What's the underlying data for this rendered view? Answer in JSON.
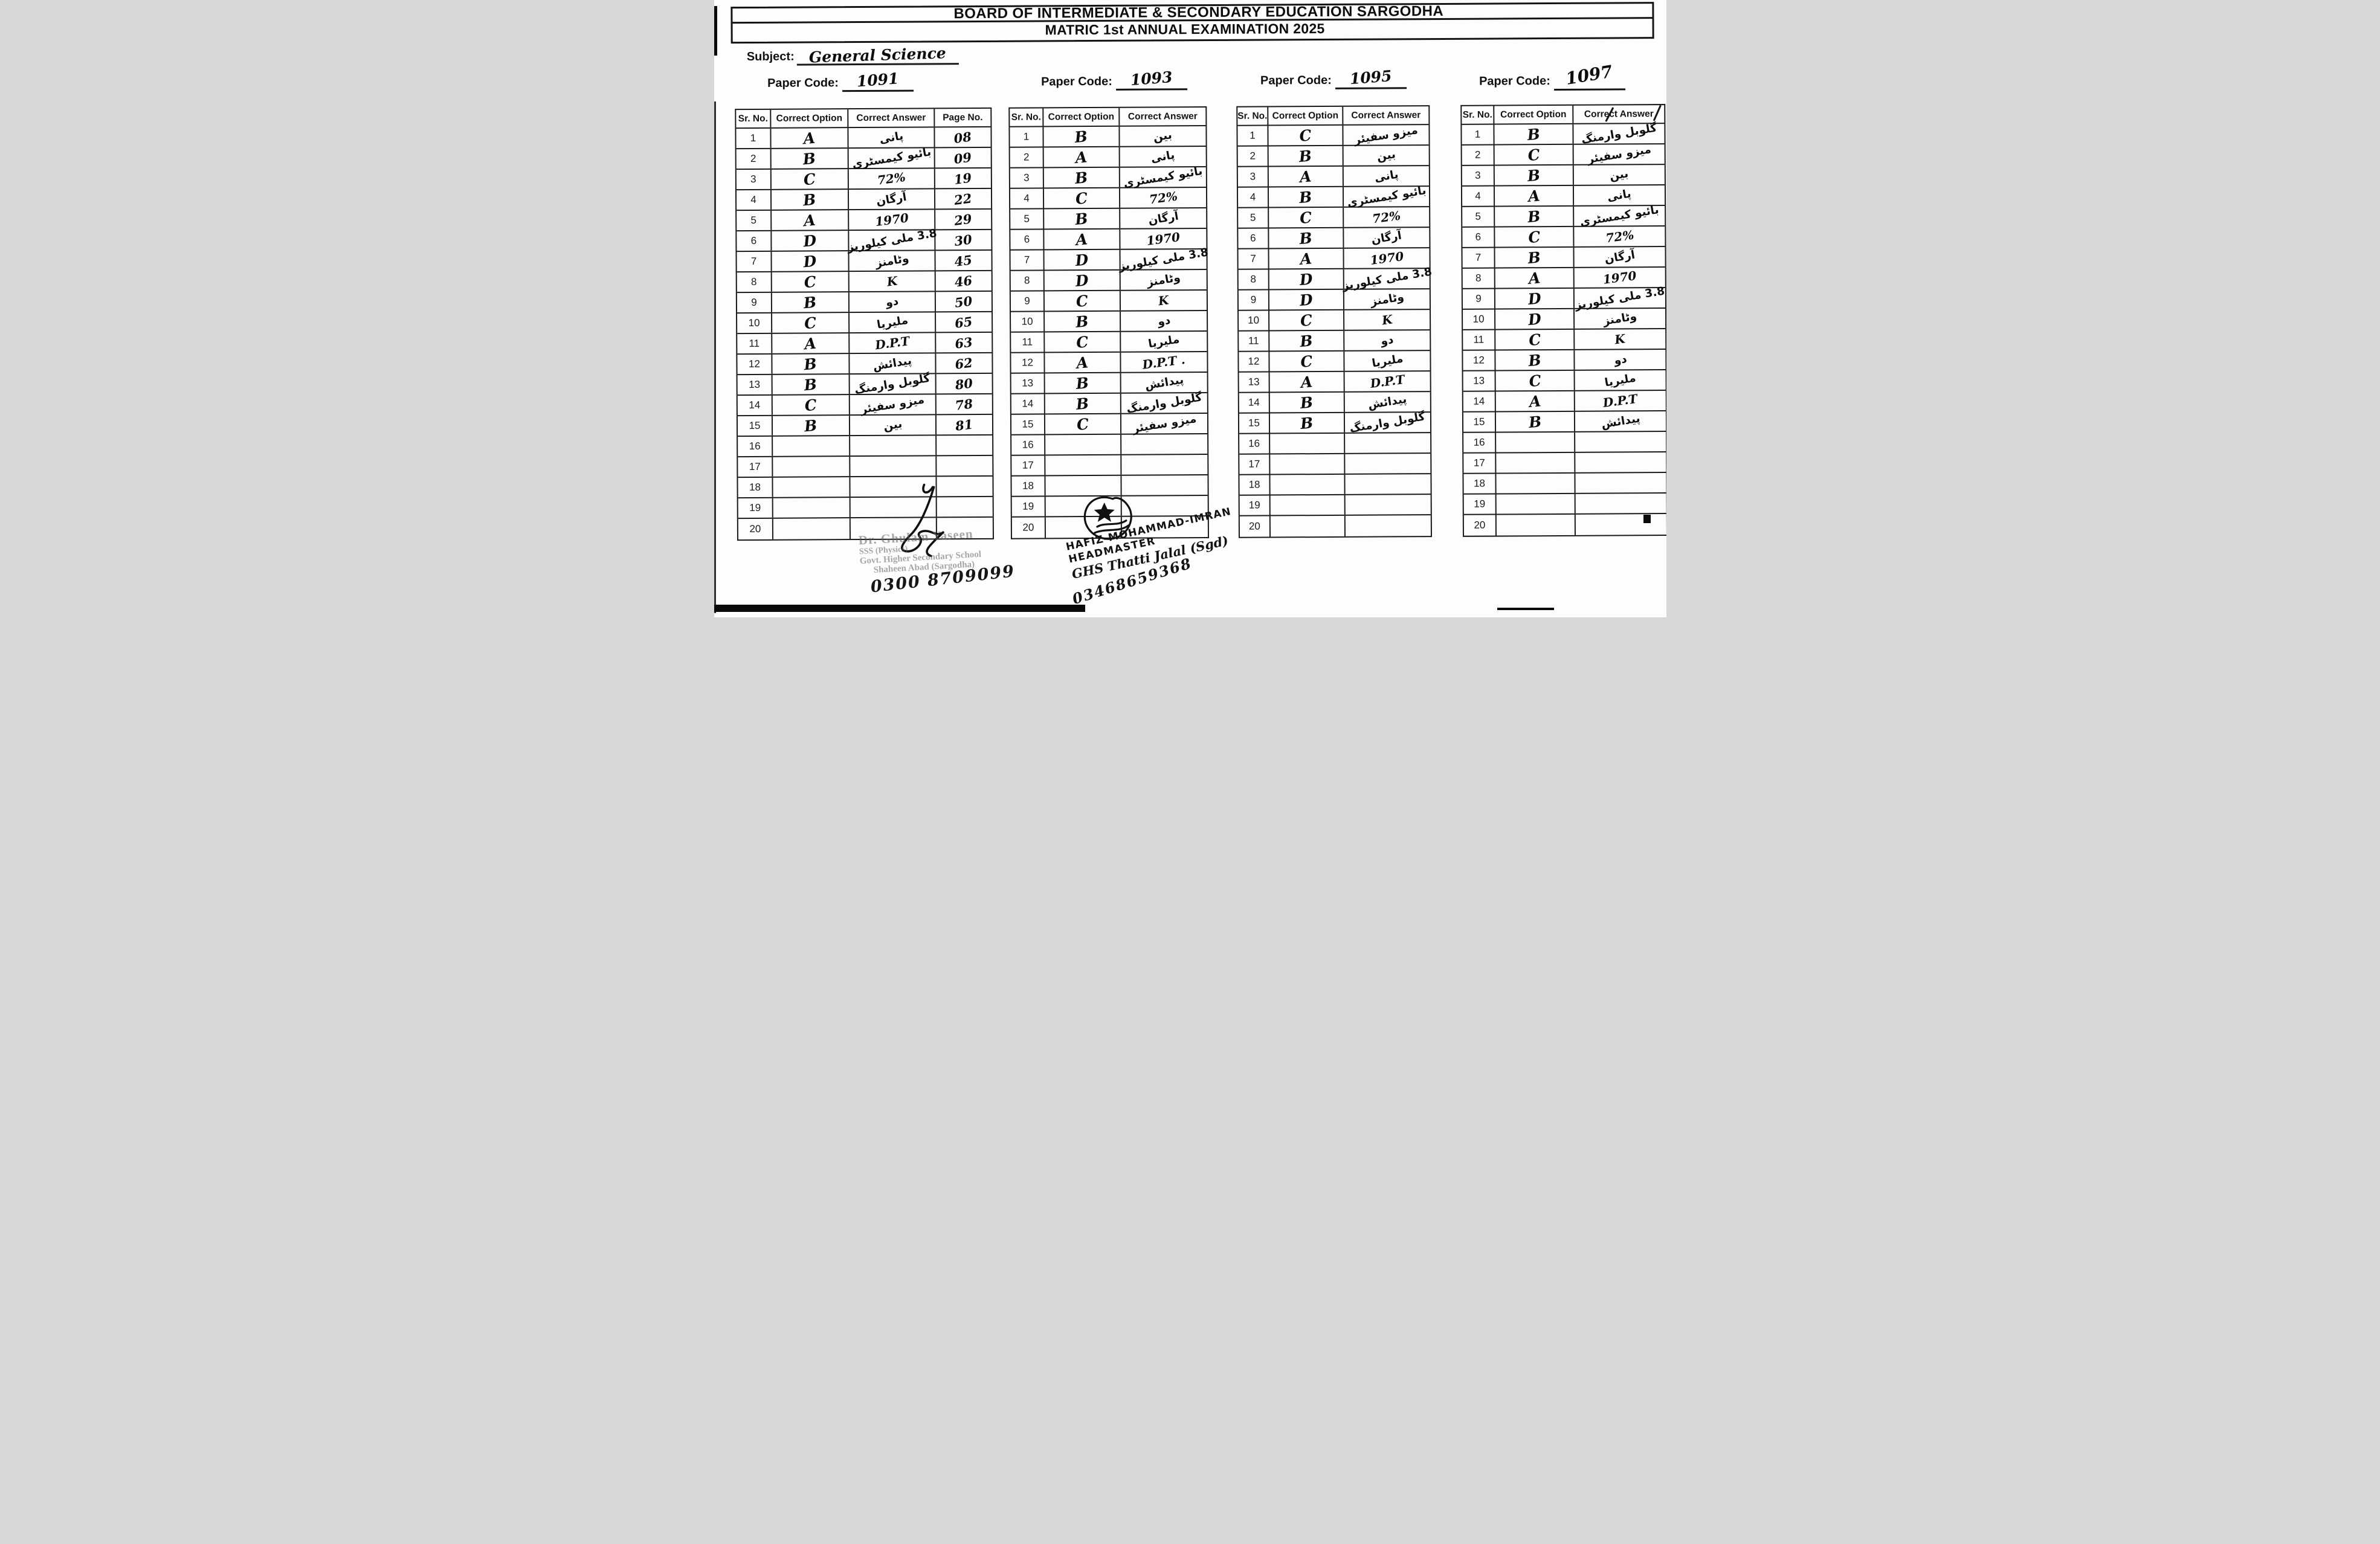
{
  "header": {
    "title_line1": "BOARD OF INTERMEDIATE & SECONDARY EDUCATION SARGODHA",
    "title_line2": "MATRIC 1st  ANNUAL EXAMINATION 2025"
  },
  "subject": {
    "label": "Subject:",
    "value": "General Science"
  },
  "paper_code_label": "Paper Code:",
  "columns": {
    "sr": "Sr. No.",
    "option": "Correct Option",
    "answer": "Correct Answer",
    "page": "Page No."
  },
  "tables": [
    {
      "paper_code": "1091",
      "has_page_no": true,
      "rows": [
        {
          "sr": "1",
          "option": "A",
          "answer": "پانی",
          "page": "08"
        },
        {
          "sr": "2",
          "option": "B",
          "answer": "بائیو کیمسٹری",
          "page": "09"
        },
        {
          "sr": "3",
          "option": "C",
          "answer": "72%",
          "page": "19"
        },
        {
          "sr": "4",
          "option": "B",
          "answer": "آرگان",
          "page": "22"
        },
        {
          "sr": "5",
          "option": "A",
          "answer": "1970",
          "page": "29"
        },
        {
          "sr": "6",
          "option": "D",
          "answer": "3.8 ملی کیلوریز",
          "page": "30"
        },
        {
          "sr": "7",
          "option": "D",
          "answer": "وٹامنز",
          "page": "45"
        },
        {
          "sr": "8",
          "option": "C",
          "answer": "K",
          "page": "46"
        },
        {
          "sr": "9",
          "option": "B",
          "answer": "دو",
          "page": "50"
        },
        {
          "sr": "10",
          "option": "C",
          "answer": "ملیریا",
          "page": "65"
        },
        {
          "sr": "11",
          "option": "A",
          "answer": "D.P.T",
          "page": "63"
        },
        {
          "sr": "12",
          "option": "B",
          "answer": "پیدائش",
          "page": "62"
        },
        {
          "sr": "13",
          "option": "B",
          "answer": "گلوبل وارمنگ",
          "page": "80"
        },
        {
          "sr": "14",
          "option": "C",
          "answer": "میزو سفیئر",
          "page": "78"
        },
        {
          "sr": "15",
          "option": "B",
          "answer": "بین",
          "page": "81"
        },
        {
          "sr": "16",
          "option": "",
          "answer": "",
          "page": ""
        },
        {
          "sr": "17",
          "option": "",
          "answer": "",
          "page": ""
        },
        {
          "sr": "18",
          "option": "",
          "answer": "",
          "page": ""
        },
        {
          "sr": "19",
          "option": "",
          "answer": "",
          "page": ""
        },
        {
          "sr": "20",
          "option": "",
          "answer": "",
          "page": ""
        }
      ]
    },
    {
      "paper_code": "1093",
      "has_page_no": false,
      "rows": [
        {
          "sr": "1",
          "option": "B",
          "answer": "بین"
        },
        {
          "sr": "2",
          "option": "A",
          "answer": "پانی"
        },
        {
          "sr": "3",
          "option": "B",
          "answer": "بائیو کیمسٹری"
        },
        {
          "sr": "4",
          "option": "C",
          "answer": "72%"
        },
        {
          "sr": "5",
          "option": "B",
          "answer": "آرگان"
        },
        {
          "sr": "6",
          "option": "A",
          "answer": "1970"
        },
        {
          "sr": "7",
          "option": "D",
          "answer": "3.8 ملی کیلوریز"
        },
        {
          "sr": "8",
          "option": "D",
          "answer": "وٹامنز"
        },
        {
          "sr": "9",
          "option": "C",
          "answer": "K"
        },
        {
          "sr": "10",
          "option": "B",
          "answer": "دو"
        },
        {
          "sr": "11",
          "option": "C",
          "answer": "ملیریا"
        },
        {
          "sr": "12",
          "option": "A",
          "answer": "D.P.T ."
        },
        {
          "sr": "13",
          "option": "B",
          "answer": "پیدائش"
        },
        {
          "sr": "14",
          "option": "B",
          "answer": "گلوبل وارمنگ"
        },
        {
          "sr": "15",
          "option": "C",
          "answer": "میزو سفیئر"
        },
        {
          "sr": "16",
          "option": "",
          "answer": ""
        },
        {
          "sr": "17",
          "option": "",
          "answer": ""
        },
        {
          "sr": "18",
          "option": "",
          "answer": ""
        },
        {
          "sr": "19",
          "option": "",
          "answer": ""
        },
        {
          "sr": "20",
          "option": "",
          "answer": ""
        }
      ]
    },
    {
      "paper_code": "1095",
      "has_page_no": false,
      "rows": [
        {
          "sr": "1",
          "option": "C",
          "answer": "میزو سفیئر"
        },
        {
          "sr": "2",
          "option": "B",
          "answer": "بین"
        },
        {
          "sr": "3",
          "option": "A",
          "answer": "پانی"
        },
        {
          "sr": "4",
          "option": "B",
          "answer": "بائیو کیمسٹری"
        },
        {
          "sr": "5",
          "option": "C",
          "answer": "72%"
        },
        {
          "sr": "6",
          "option": "B",
          "answer": "آرگان"
        },
        {
          "sr": "7",
          "option": "A",
          "answer": "1970"
        },
        {
          "sr": "8",
          "option": "D",
          "answer": "3.8 ملی کیلوریز"
        },
        {
          "sr": "9",
          "option": "D",
          "answer": "وٹامنز"
        },
        {
          "sr": "10",
          "option": "C",
          "answer": "K"
        },
        {
          "sr": "11",
          "option": "B",
          "answer": "دو"
        },
        {
          "sr": "12",
          "option": "C",
          "answer": "ملیریا"
        },
        {
          "sr": "13",
          "option": "A",
          "answer": "D.P.T"
        },
        {
          "sr": "14",
          "option": "B",
          "answer": "پیدائش"
        },
        {
          "sr": "15",
          "option": "B",
          "answer": "گلوبل وارمنگ"
        },
        {
          "sr": "16",
          "option": "",
          "answer": ""
        },
        {
          "sr": "17",
          "option": "",
          "answer": ""
        },
        {
          "sr": "18",
          "option": "",
          "answer": ""
        },
        {
          "sr": "19",
          "option": "",
          "answer": ""
        },
        {
          "sr": "20",
          "option": "",
          "answer": ""
        }
      ]
    },
    {
      "paper_code": "1097",
      "has_page_no": false,
      "rows": [
        {
          "sr": "1",
          "option": "B",
          "answer": "گلوبل وارمنگ"
        },
        {
          "sr": "2",
          "option": "C",
          "answer": "میزو سفیئر"
        },
        {
          "sr": "3",
          "option": "B",
          "answer": "بین"
        },
        {
          "sr": "4",
          "option": "A",
          "answer": "پانی"
        },
        {
          "sr": "5",
          "option": "B",
          "answer": "بائیو کیمسٹری"
        },
        {
          "sr": "6",
          "option": "C",
          "answer": "72%"
        },
        {
          "sr": "7",
          "option": "B",
          "answer": "آرگان"
        },
        {
          "sr": "8",
          "option": "A",
          "answer": "1970"
        },
        {
          "sr": "9",
          "option": "D",
          "answer": "3.8 ملی کیلوریز"
        },
        {
          "sr": "10",
          "option": "D",
          "answer": "وٹامنز"
        },
        {
          "sr": "11",
          "option": "C",
          "answer": "K"
        },
        {
          "sr": "12",
          "option": "B",
          "answer": "دو"
        },
        {
          "sr": "13",
          "option": "C",
          "answer": "ملیریا"
        },
        {
          "sr": "14",
          "option": "A",
          "answer": "D.P.T"
        },
        {
          "sr": "15",
          "option": "B",
          "answer": "پیدائش"
        },
        {
          "sr": "16",
          "option": "",
          "answer": ""
        },
        {
          "sr": "17",
          "option": "",
          "answer": ""
        },
        {
          "sr": "18",
          "option": "",
          "answer": ""
        },
        {
          "sr": "19",
          "option": "",
          "answer": ""
        },
        {
          "sr": "20",
          "option": "",
          "answer": ""
        }
      ]
    }
  ],
  "stamp": {
    "line1": "Dr. Ghulam Yaseen",
    "line2": "SSS (Physics)",
    "line3": "Govt. Higher Secondary School",
    "line4": "Shaheen Abad (Sargodha)",
    "phone": "0300 8709099"
  },
  "note": {
    "line1": "HAFIZ-MOHAMMAD-IMRAN",
    "line2": "HEADMASTER",
    "line3": "GHS Thatti Jalal (Sgd)",
    "phone": "03468659368"
  },
  "ink_color": "#111111"
}
